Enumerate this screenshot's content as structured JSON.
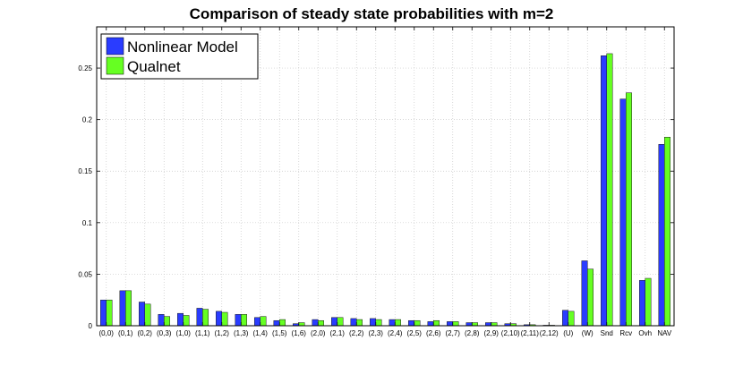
{
  "chart_data": {
    "type": "bar",
    "title": "Comparison of steady state probabilities with m=2",
    "xlabel": "",
    "ylabel": "",
    "ylim": [
      0,
      0.29
    ],
    "yticks": [
      "0",
      "0.05",
      "0.1",
      "0.15",
      "0.2",
      "0.25"
    ],
    "grid": true,
    "legend_position": "top-left",
    "categories": [
      "(0,0)",
      "(0,1)",
      "(0,2)",
      "(0,3)",
      "(1,0)",
      "(1,1)",
      "(1,2)",
      "(1,3)",
      "(1,4)",
      "(1,5)",
      "(1,6)",
      "(2,0)",
      "(2,1)",
      "(2,2)",
      "(2,3)",
      "(2,4)",
      "(2,5)",
      "(2,6)",
      "(2,7)",
      "(2,8)",
      "(2,9)",
      "(2,10)",
      "(2,11)",
      "(2,12)",
      "(U)",
      "(W)",
      "Snd",
      "Rcv",
      "Ovh",
      "NAV"
    ],
    "series": [
      {
        "name": "Nonlinear Model",
        "color": "#2a3cff",
        "values": [
          0.025,
          0.034,
          0.023,
          0.011,
          0.012,
          0.017,
          0.014,
          0.011,
          0.008,
          0.005,
          0.002,
          0.006,
          0.008,
          0.007,
          0.007,
          0.006,
          0.005,
          0.004,
          0.004,
          0.003,
          0.003,
          0.002,
          0.001,
          0.0005,
          0.015,
          0.063,
          0.262,
          0.22,
          0.044,
          0.176
        ]
      },
      {
        "name": "Qualnet",
        "color": "#66ff22",
        "values": [
          0.025,
          0.034,
          0.021,
          0.009,
          0.01,
          0.016,
          0.013,
          0.011,
          0.009,
          0.006,
          0.003,
          0.005,
          0.008,
          0.006,
          0.006,
          0.006,
          0.005,
          0.005,
          0.004,
          0.003,
          0.003,
          0.002,
          0.001,
          0.0005,
          0.014,
          0.055,
          0.264,
          0.226,
          0.046,
          0.183
        ]
      }
    ]
  }
}
